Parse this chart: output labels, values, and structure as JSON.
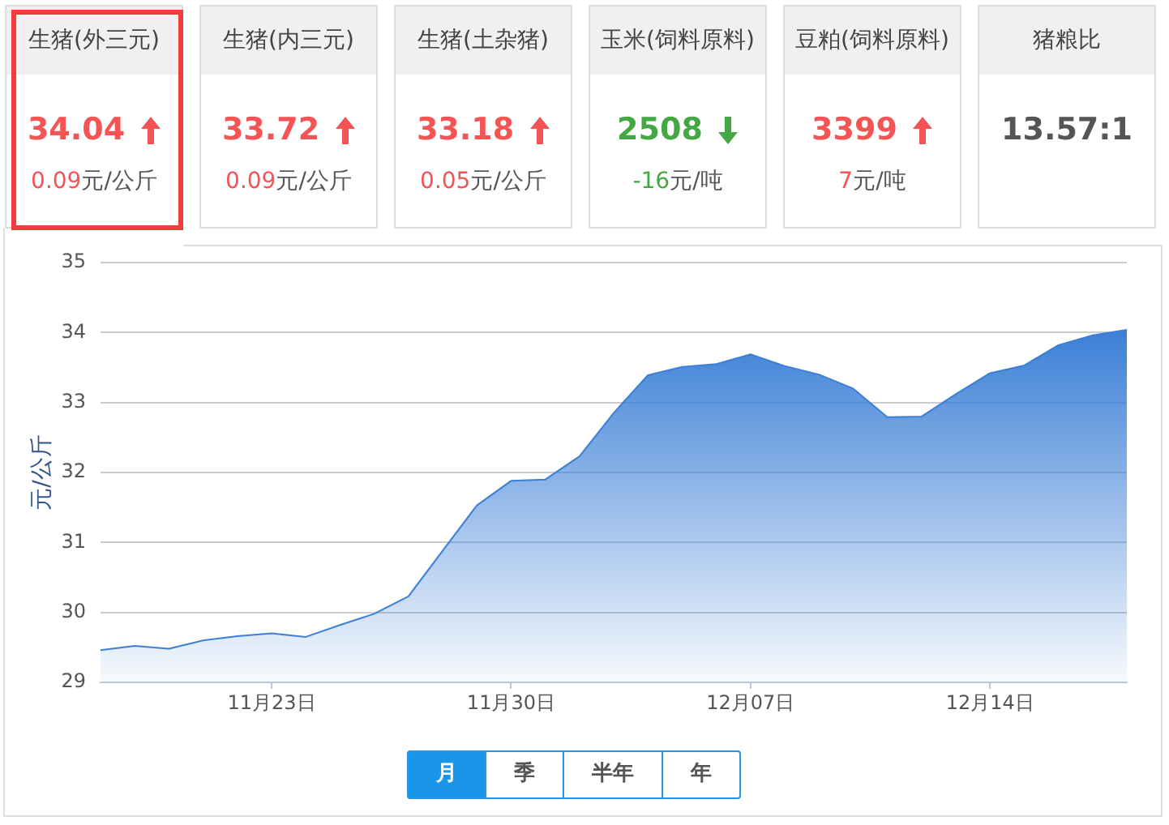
{
  "chart_data": [
    {
      "type": "other",
      "categories": [
        "生猪(外三元)",
        "生猪(内三元)",
        "生猪(土杂猪)",
        "玉米(饲料原料)",
        "豆粕(饲料原料)",
        "猪粮比"
      ],
      "series": [
        {
          "values": [
            34.04,
            33.72,
            33.18,
            2508,
            3399,
            13.57
          ],
          "value_labels": [
            "34.04",
            "33.72",
            "33.18",
            "2508",
            "3399",
            "13.57:1"
          ]
        },
        {
          "values": [
            0.09,
            0.09,
            0.05,
            -16,
            7,
            null
          ],
          "value_labels": [
            "0.09元/公斤",
            "0.09元/公斤",
            "0.05元/公斤",
            "-16元/吨",
            "7元/吨",
            null
          ]
        }
      ]
    },
    {
      "type": "area",
      "ylabel": "元/公斤",
      "categories": [
        null,
        null,
        null,
        null,
        null,
        "11月23日",
        null,
        null,
        null,
        null,
        null,
        null,
        "11月30日",
        null,
        null,
        null,
        null,
        null,
        null,
        "12月07日",
        null,
        null,
        null,
        null,
        null,
        null,
        "12月14日",
        null,
        null,
        null,
        null
      ],
      "series": [
        {
          "color": "#3b7fd6",
          "values": [
            29.46,
            29.52,
            29.48,
            29.6,
            29.66,
            29.7,
            29.65,
            29.82,
            29.98,
            30.23,
            30.88,
            31.53,
            31.88,
            31.9,
            32.23,
            32.85,
            33.39,
            33.51,
            33.55,
            33.69,
            33.52,
            33.4,
            33.2,
            32.79,
            32.8,
            33.12,
            33.42,
            33.53,
            33.82,
            33.96,
            34.04
          ]
        }
      ],
      "ylim": [
        29,
        35
      ],
      "yticks": [
        29,
        30,
        31,
        32,
        33,
        34,
        35
      ],
      "grid": "y",
      "annotations": [
        "月",
        "季",
        "半年",
        "年"
      ]
    }
  ]
}
